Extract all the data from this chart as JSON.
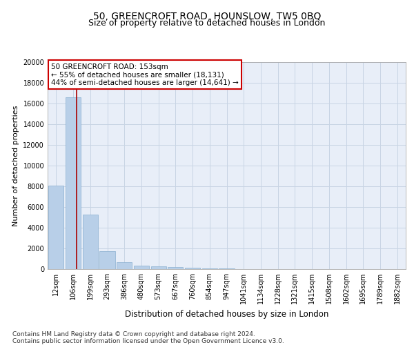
{
  "title": "50, GREENCROFT ROAD, HOUNSLOW, TW5 0BQ",
  "subtitle": "Size of property relative to detached houses in London",
  "xlabel": "Distribution of detached houses by size in London",
  "ylabel": "Number of detached properties",
  "categories": [
    "12sqm",
    "106sqm",
    "199sqm",
    "293sqm",
    "386sqm",
    "480sqm",
    "573sqm",
    "667sqm",
    "760sqm",
    "854sqm",
    "947sqm",
    "1041sqm",
    "1134sqm",
    "1228sqm",
    "1321sqm",
    "1415sqm",
    "1508sqm",
    "1602sqm",
    "1695sqm",
    "1789sqm",
    "1882sqm"
  ],
  "values": [
    8100,
    16600,
    5300,
    1750,
    650,
    350,
    250,
    200,
    150,
    100,
    50,
    30,
    20,
    15,
    10,
    8,
    5,
    4,
    3,
    2,
    1
  ],
  "bar_color": "#b8cfe8",
  "bar_edgecolor": "#8aafd0",
  "vline_x": 1.2,
  "vline_color": "#aa0000",
  "annotation_text": "50 GREENCROFT ROAD: 153sqm\n← 55% of detached houses are smaller (18,131)\n44% of semi-detached houses are larger (14,641) →",
  "annotation_box_color": "#cc0000",
  "ylim": [
    0,
    20000
  ],
  "yticks": [
    0,
    2000,
    4000,
    6000,
    8000,
    10000,
    12000,
    14000,
    16000,
    18000,
    20000
  ],
  "grid_color": "#c8d4e4",
  "bg_color": "#e8eef8",
  "footnote": "Contains HM Land Registry data © Crown copyright and database right 2024.\nContains public sector information licensed under the Open Government Licence v3.0.",
  "title_fontsize": 10,
  "subtitle_fontsize": 9,
  "xlabel_fontsize": 8.5,
  "ylabel_fontsize": 8,
  "tick_fontsize": 7,
  "annot_fontsize": 7.5,
  "footnote_fontsize": 6.5
}
